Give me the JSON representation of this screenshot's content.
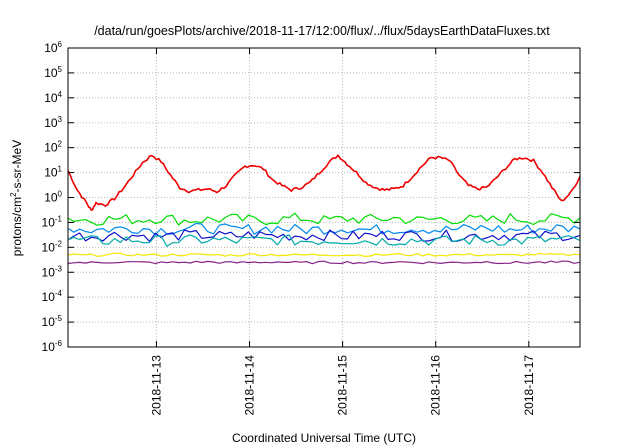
{
  "chart_data": {
    "type": "line",
    "title": "/data/run/goesPlots/archive/2018-11-17/12:00/flux/../flux/5daysEarthDataFluxes.txt",
    "xlabel": "Coordinated Universal Time (UTC)",
    "ylabel": {
      "base": "protons/cm",
      "sup": "2",
      "rest": "-s-sr-MeV"
    },
    "x_unit": "day_of_nov_2018",
    "xlim": [
      12.05,
      17.55
    ],
    "ylim": [
      1e-06,
      1000000.0
    ],
    "y_scale": "log",
    "grid": true,
    "x_ticks": [
      {
        "value": 13,
        "label": "2018-11-13"
      },
      {
        "value": 14,
        "label": "2018-11-14"
      },
      {
        "value": 15,
        "label": "2018-11-15"
      },
      {
        "value": 16,
        "label": "2018-11-16"
      },
      {
        "value": 17,
        "label": "2018-11-17"
      }
    ],
    "y_ticks": [
      {
        "value": 1e-06,
        "base": "10",
        "exp": "-6"
      },
      {
        "value": 1e-05,
        "base": "10",
        "exp": "-5"
      },
      {
        "value": 0.0001,
        "base": "10",
        "exp": "-4"
      },
      {
        "value": 0.001,
        "base": "10",
        "exp": "-3"
      },
      {
        "value": 0.01,
        "base": "10",
        "exp": "-2"
      },
      {
        "value": 0.1,
        "base": "10",
        "exp": "-1"
      },
      {
        "value": 1,
        "base": "10",
        "exp": "0"
      },
      {
        "value": 10,
        "base": "10",
        "exp": "1"
      },
      {
        "value": 100,
        "base": "10",
        "exp": "2"
      },
      {
        "value": 1000,
        "base": "10",
        "exp": "3"
      },
      {
        "value": 10000,
        "base": "10",
        "exp": "4"
      },
      {
        "value": 100000,
        "base": "10",
        "exp": "5"
      },
      {
        "value": 1000000,
        "base": "10",
        "exp": "6"
      }
    ],
    "series": [
      {
        "color": "#ee0000",
        "x": [
          12.05,
          12.15,
          12.25,
          12.3,
          12.35,
          12.45,
          12.55,
          12.65,
          12.75,
          12.85,
          12.95,
          13.05,
          13.15,
          13.25,
          13.35,
          13.45,
          13.55,
          13.65,
          13.75,
          13.85,
          13.95,
          14.05,
          14.15,
          14.25,
          14.35,
          14.45,
          14.55,
          14.65,
          14.75,
          14.85,
          14.95,
          15.05,
          15.15,
          15.25,
          15.35,
          15.45,
          15.55,
          15.65,
          15.75,
          15.85,
          15.95,
          16.05,
          16.15,
          16.25,
          16.35,
          16.45,
          16.55,
          16.65,
          16.75,
          16.85,
          16.95,
          17.05,
          17.15,
          17.25,
          17.35,
          17.45,
          17.55
        ],
        "y": [
          12,
          2,
          0.6,
          0.3,
          0.6,
          0.5,
          0.9,
          2.5,
          8,
          25,
          50,
          28,
          8,
          2.5,
          1.8,
          2.0,
          2.2,
          1.7,
          3.0,
          8,
          18,
          20,
          14,
          5,
          3,
          2.0,
          2.5,
          4,
          10,
          25,
          50,
          22,
          10,
          4,
          2.5,
          2.0,
          2.2,
          3,
          7,
          18,
          40,
          40,
          30,
          8,
          3,
          2.2,
          2.6,
          6,
          15,
          35,
          40,
          30,
          10,
          2.5,
          0.7,
          1.5,
          7
        ]
      },
      {
        "color": "#00dd00",
        "x": [
          12.05,
          12.3,
          12.55,
          12.8,
          13.05,
          13.3,
          13.55,
          13.8,
          14.05,
          14.3,
          14.55,
          14.8,
          15.05,
          15.3,
          15.55,
          15.8,
          16.05,
          16.3,
          16.55,
          16.8,
          17.05,
          17.3,
          17.55
        ],
        "y": [
          0.15,
          0.12,
          0.14,
          0.13,
          0.15,
          0.12,
          0.13,
          0.14,
          0.12,
          0.13,
          0.15,
          0.12,
          0.14,
          0.13,
          0.15,
          0.12,
          0.14,
          0.13,
          0.12,
          0.15,
          0.13,
          0.14,
          0.15
        ]
      },
      {
        "color": "#0088ee",
        "x": [
          12.05,
          12.3,
          12.55,
          12.8,
          13.05,
          13.3,
          13.55,
          13.8,
          14.05,
          14.3,
          14.55,
          14.8,
          15.05,
          15.3,
          15.55,
          15.8,
          16.05,
          16.3,
          16.55,
          16.8,
          17.05,
          17.3,
          17.55
        ],
        "y": [
          0.06,
          0.05,
          0.055,
          0.06,
          0.05,
          0.055,
          0.06,
          0.05,
          0.055,
          0.06,
          0.05,
          0.055,
          0.06,
          0.05,
          0.055,
          0.06,
          0.05,
          0.055,
          0.06,
          0.05,
          0.055,
          0.06,
          0.055
        ]
      },
      {
        "color": "#1010cc",
        "x": [
          12.05,
          12.3,
          12.55,
          12.8,
          13.05,
          13.3,
          13.55,
          13.8,
          14.05,
          14.3,
          14.55,
          14.8,
          15.05,
          15.3,
          15.55,
          15.8,
          16.05,
          16.3,
          16.55,
          16.8,
          17.05,
          17.3,
          17.55
        ],
        "y": [
          0.03,
          0.028,
          0.032,
          0.03,
          0.027,
          0.031,
          0.03,
          0.028,
          0.032,
          0.029,
          0.03,
          0.031,
          0.028,
          0.03,
          0.032,
          0.029,
          0.03,
          0.028,
          0.031,
          0.03,
          0.029,
          0.031,
          0.03
        ]
      },
      {
        "color": "#00aaaa",
        "x": [
          12.05,
          12.3,
          12.55,
          12.8,
          13.05,
          13.3,
          13.55,
          13.8,
          14.05,
          14.3,
          14.55,
          14.8,
          15.05,
          15.3,
          15.55,
          15.8,
          16.05,
          16.3,
          16.55,
          16.8,
          17.05,
          17.3,
          17.55
        ],
        "y": [
          0.02,
          0.018,
          0.019,
          0.02,
          0.018,
          0.019,
          0.02,
          0.018,
          0.019,
          0.02,
          0.018,
          0.019,
          0.02,
          0.018,
          0.019,
          0.02,
          0.018,
          0.019,
          0.02,
          0.018,
          0.019,
          0.02,
          0.019
        ]
      },
      {
        "color": "#f2e600",
        "x": [
          12.05,
          12.3,
          12.55,
          12.8,
          13.05,
          13.3,
          13.55,
          13.8,
          14.05,
          14.3,
          14.55,
          14.8,
          15.05,
          15.3,
          15.55,
          15.8,
          16.05,
          16.3,
          16.55,
          16.8,
          17.05,
          17.3,
          17.55
        ],
        "y": [
          0.005,
          0.0048,
          0.0052,
          0.005,
          0.0049,
          0.0051,
          0.005,
          0.0048,
          0.0052,
          0.005,
          0.0049,
          0.0051,
          0.005,
          0.0048,
          0.0052,
          0.005,
          0.0049,
          0.0051,
          0.005,
          0.0048,
          0.0052,
          0.005,
          0.005
        ]
      },
      {
        "color": "#882288",
        "x": [
          12.05,
          12.3,
          12.55,
          12.8,
          13.05,
          13.3,
          13.55,
          13.8,
          14.05,
          14.3,
          14.55,
          14.8,
          15.05,
          15.3,
          15.55,
          15.8,
          16.05,
          16.3,
          16.55,
          16.8,
          17.05,
          17.3,
          17.55
        ],
        "y": [
          0.0025,
          0.0024,
          0.0026,
          0.0025,
          0.0024,
          0.0025,
          0.0026,
          0.0024,
          0.0025,
          0.0026,
          0.0024,
          0.0025,
          0.0025,
          0.0024,
          0.0026,
          0.0025,
          0.0024,
          0.0025,
          0.0026,
          0.0024,
          0.0025,
          0.0025,
          0.0025
        ]
      }
    ]
  }
}
